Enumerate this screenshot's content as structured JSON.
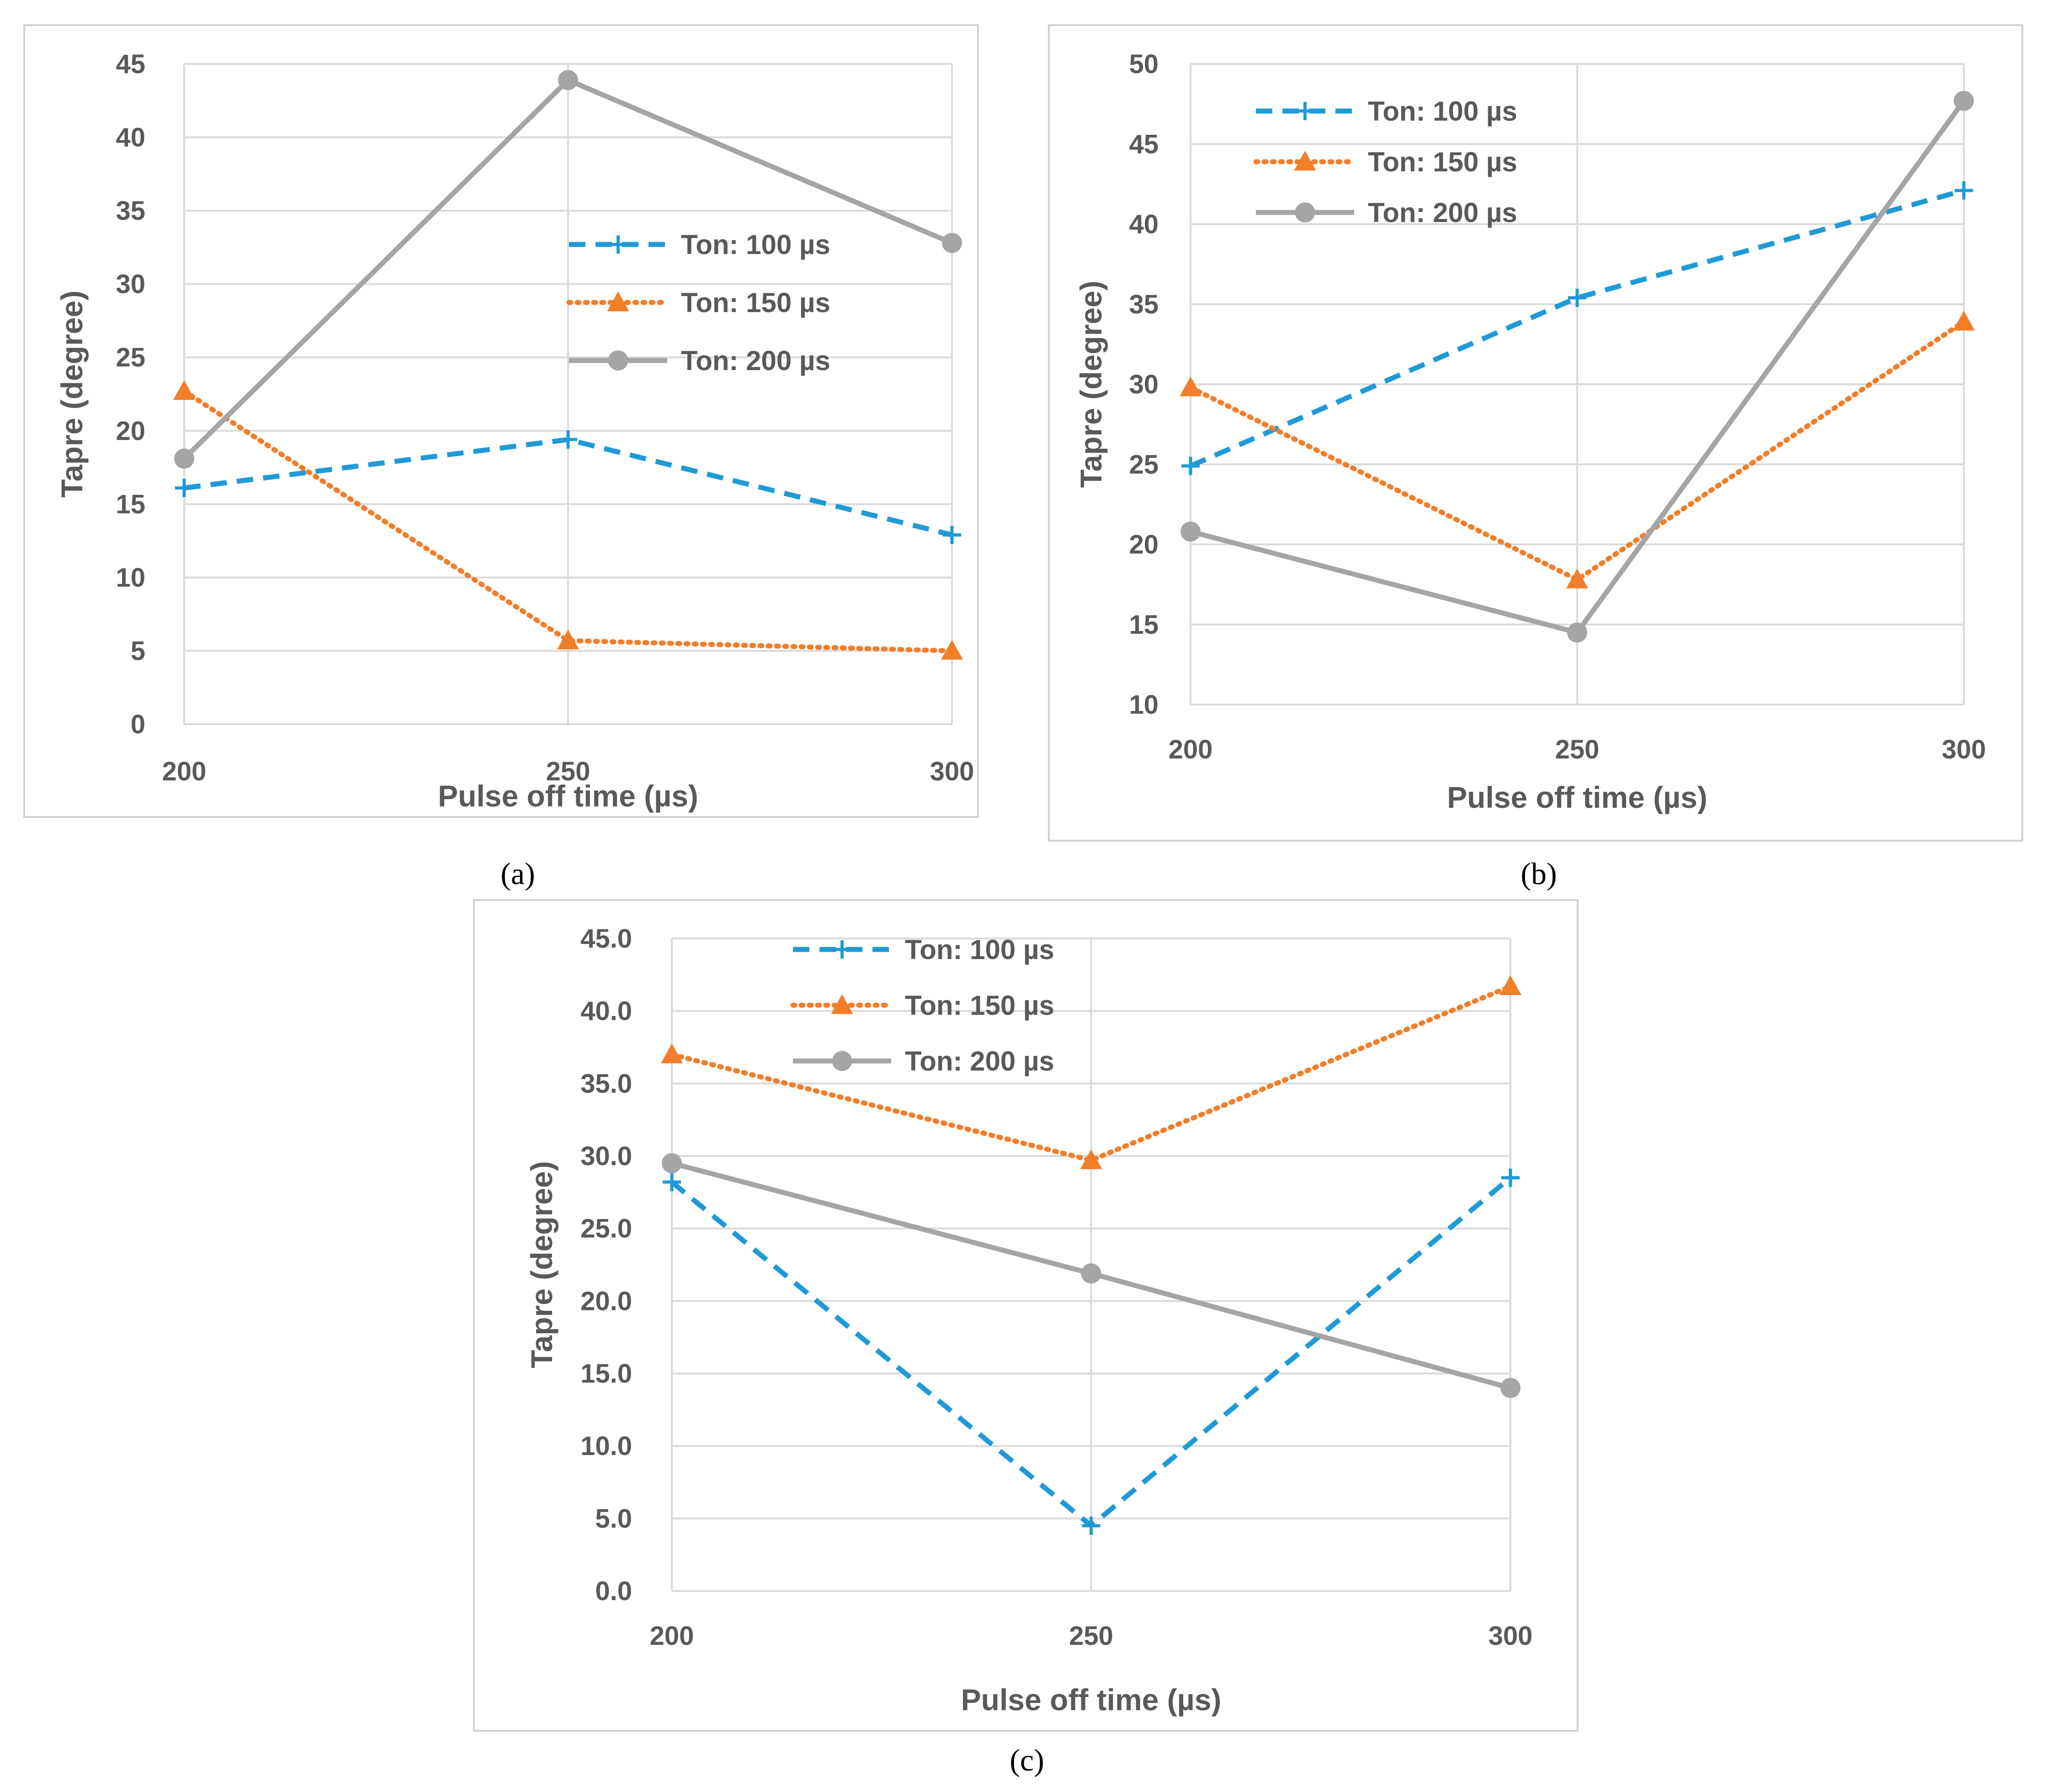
{
  "colors": {
    "ton100": "#1F9AD6",
    "ton150": "#F27E2A",
    "ton200": "#A5A5A5",
    "grid": "#D9D9D9",
    "frame": "#D9D9D9",
    "text": "#595959"
  },
  "chart_data": [
    {
      "type": "line",
      "caption": "(a)",
      "xlabel": "Pulse off time (µs)",
      "ylabel": "Tapre (degree)",
      "x": [
        200,
        250,
        300
      ],
      "x_tick_labels": [
        "200",
        "250",
        "300"
      ],
      "ylim": [
        0,
        45
      ],
      "y_ticks": [
        0,
        5,
        10,
        15,
        20,
        25,
        30,
        35,
        40,
        45
      ],
      "y_tick_labels": [
        "0",
        "5",
        "10",
        "15",
        "20",
        "25",
        "30",
        "35",
        "40",
        "45"
      ],
      "legend_position": "right",
      "series": [
        {
          "name": "Ton: 100 µs",
          "values": [
            16.1,
            19.4,
            12.9
          ]
        },
        {
          "name": "Ton: 150 µs",
          "values": [
            22.7,
            5.7,
            5.0
          ]
        },
        {
          "name": "Ton: 200 µs",
          "values": [
            18.1,
            43.9,
            32.8
          ]
        }
      ]
    },
    {
      "type": "line",
      "caption": "(b)",
      "xlabel": "Pulse off time (µs)",
      "ylabel": "Tapre (degree)",
      "x": [
        200,
        250,
        300
      ],
      "x_tick_labels": [
        "200",
        "250",
        "300"
      ],
      "ylim": [
        10,
        50
      ],
      "y_ticks": [
        10,
        15,
        20,
        25,
        30,
        35,
        40,
        45,
        50
      ],
      "y_tick_labels": [
        "10",
        "15",
        "20",
        "25",
        "30",
        "35",
        "40",
        "45",
        "50"
      ],
      "legend_position": "top-left",
      "series": [
        {
          "name": "Ton: 100 µs",
          "values": [
            24.9,
            35.4,
            42.1
          ]
        },
        {
          "name": "Ton: 150 µs",
          "values": [
            29.8,
            17.8,
            33.9
          ]
        },
        {
          "name": "Ton: 200 µs",
          "values": [
            20.8,
            14.5,
            47.7
          ]
        }
      ]
    },
    {
      "type": "line",
      "caption": "(c)",
      "xlabel": "Pulse off time (µs)",
      "ylabel": "Tapre (degree)",
      "x": [
        200,
        250,
        300
      ],
      "x_tick_labels": [
        "200",
        "250",
        "300"
      ],
      "ylim": [
        0,
        45
      ],
      "y_ticks": [
        0,
        5,
        10,
        15,
        20,
        25,
        30,
        35,
        40,
        45
      ],
      "y_tick_labels": [
        "0.0",
        "5.0",
        "10.0",
        "15.0",
        "20.0",
        "25.0",
        "30.0",
        "35.0",
        "40.0",
        "45.0"
      ],
      "legend_position": "top",
      "series": [
        {
          "name": "Ton: 100 µs",
          "values": [
            28.2,
            4.5,
            28.5
          ]
        },
        {
          "name": "Ton: 150 µs",
          "values": [
            37.0,
            29.7,
            41.7
          ]
        },
        {
          "name": "Ton: 200 µs",
          "values": [
            29.5,
            21.9,
            14.0
          ]
        }
      ]
    }
  ]
}
